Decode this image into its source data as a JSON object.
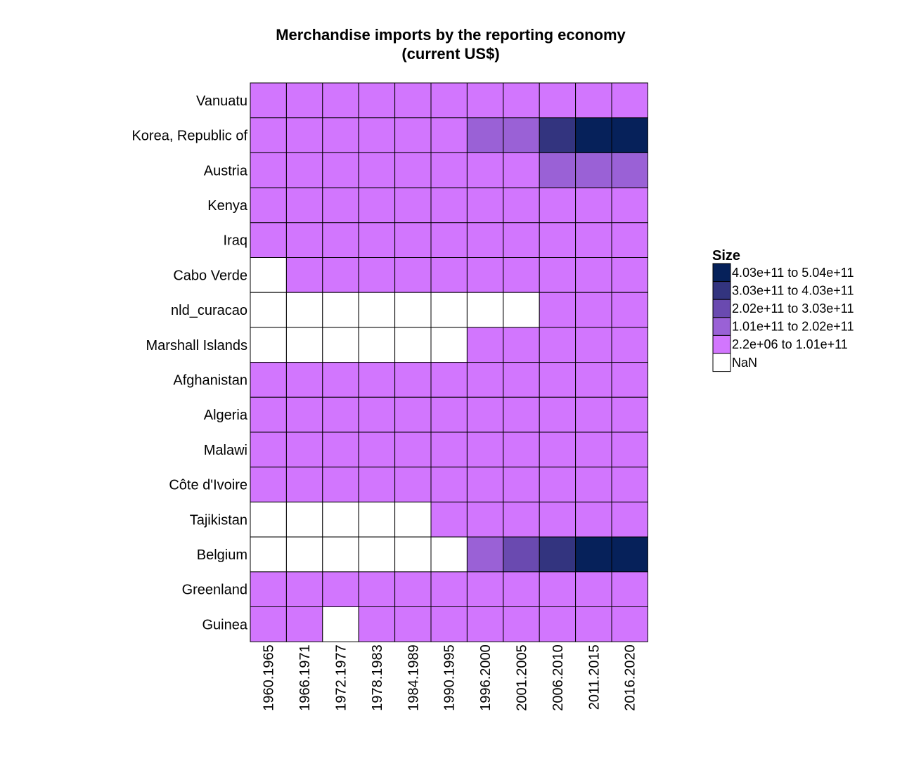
{
  "chart_data": {
    "type": "heatmap",
    "title": "Merchandise imports by the reporting economy",
    "subtitle": "(current US$)",
    "columns": [
      "1960.1965",
      "1966.1971",
      "1972.1977",
      "1978.1983",
      "1984.1989",
      "1990.1995",
      "1996.2000",
      "2001.2005",
      "2006.2010",
      "2011.2015",
      "2016.2020"
    ],
    "rows": [
      "Vanuatu",
      "Korea, Republic of",
      "Austria",
      "Kenya",
      "Iraq",
      "Cabo Verde",
      "nld_curacao",
      "Marshall Islands",
      "Afghanistan",
      "Algeria",
      "Malawi",
      "Côte d'Ivoire",
      "Tajikistan",
      "Belgium",
      "Greenland",
      "Guinea"
    ],
    "bins": [
      {
        "label": "4.03e+11 to 5.04e+11",
        "color": "#06215a"
      },
      {
        "label": "3.03e+11 to 4.03e+11",
        "color": "#33347f"
      },
      {
        "label": "2.02e+11 to 3.03e+11",
        "color": "#6a4ab0"
      },
      {
        "label": "1.01e+11 to 2.02e+11",
        "color": "#9a61d6"
      },
      {
        "label": "2.2e+06 to 1.01e+11",
        "color": "#d276fe"
      },
      {
        "label": "NaN",
        "color": "#ffffff"
      }
    ],
    "cell_bins": [
      [
        4,
        4,
        4,
        4,
        4,
        4,
        4,
        4,
        4,
        4,
        4
      ],
      [
        4,
        4,
        4,
        4,
        4,
        4,
        3,
        3,
        1,
        0,
        0
      ],
      [
        4,
        4,
        4,
        4,
        4,
        4,
        4,
        4,
        3,
        3,
        3
      ],
      [
        4,
        4,
        4,
        4,
        4,
        4,
        4,
        4,
        4,
        4,
        4
      ],
      [
        4,
        4,
        4,
        4,
        4,
        4,
        4,
        4,
        4,
        4,
        4
      ],
      [
        5,
        4,
        4,
        4,
        4,
        4,
        4,
        4,
        4,
        4,
        4
      ],
      [
        5,
        5,
        5,
        5,
        5,
        5,
        5,
        5,
        4,
        4,
        4
      ],
      [
        5,
        5,
        5,
        5,
        5,
        5,
        4,
        4,
        4,
        4,
        4
      ],
      [
        4,
        4,
        4,
        4,
        4,
        4,
        4,
        4,
        4,
        4,
        4
      ],
      [
        4,
        4,
        4,
        4,
        4,
        4,
        4,
        4,
        4,
        4,
        4
      ],
      [
        4,
        4,
        4,
        4,
        4,
        4,
        4,
        4,
        4,
        4,
        4
      ],
      [
        4,
        4,
        4,
        4,
        4,
        4,
        4,
        4,
        4,
        4,
        4
      ],
      [
        5,
        5,
        5,
        5,
        5,
        4,
        4,
        4,
        4,
        4,
        4
      ],
      [
        5,
        5,
        5,
        5,
        5,
        5,
        3,
        2,
        1,
        0,
        0
      ],
      [
        4,
        4,
        4,
        4,
        4,
        4,
        4,
        4,
        4,
        4,
        4
      ],
      [
        4,
        4,
        5,
        4,
        4,
        4,
        4,
        4,
        4,
        4,
        4
      ]
    ],
    "legend": {
      "title": "Size",
      "position": "right"
    },
    "grid": true
  }
}
